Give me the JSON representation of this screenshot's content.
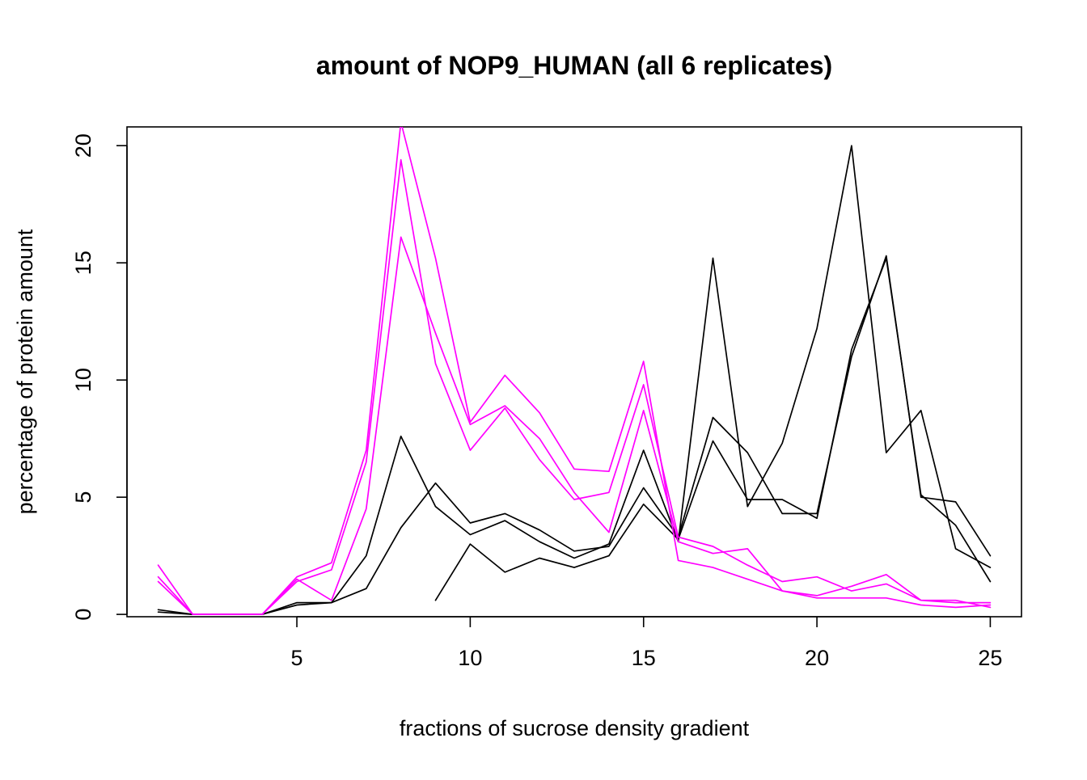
{
  "chart_data": {
    "type": "line",
    "title": "amount of NOP9_HUMAN (all 6 replicates)",
    "xlabel": "fractions of sucrose density gradient",
    "ylabel": "percentage of protein amount",
    "xlim": [
      0.1,
      25.9
    ],
    "ylim": [
      -0.1,
      20.8
    ],
    "x_ticks": [
      5,
      10,
      15,
      20,
      25
    ],
    "y_ticks": [
      0,
      5,
      10,
      15,
      20
    ],
    "grid": false,
    "legend": "none",
    "colors": {
      "black": "#000000",
      "magenta": "#ff00ff"
    },
    "x": [
      1,
      2,
      3,
      4,
      5,
      6,
      7,
      8,
      9,
      10,
      11,
      12,
      13,
      14,
      15,
      16,
      17,
      18,
      19,
      20,
      21,
      22,
      23,
      24,
      25
    ],
    "series": [
      {
        "color": "#000000",
        "values": [
          0.2,
          0.0,
          0.0,
          0.0,
          0.4,
          0.5,
          2.5,
          7.6,
          4.6,
          3.4,
          4.0,
          3.1,
          2.4,
          3.0,
          7.0,
          3.1,
          15.2,
          4.6,
          7.3,
          12.2,
          20.0,
          6.9,
          8.7,
          2.8,
          2.0
        ]
      },
      {
        "color": "#000000",
        "values": [
          0.1,
          0.0,
          0.0,
          0.0,
          0.5,
          0.5,
          1.1,
          3.7,
          5.6,
          3.9,
          4.3,
          3.6,
          2.7,
          2.9,
          5.4,
          3.3,
          8.4,
          6.9,
          4.3,
          4.3,
          11.0,
          15.3,
          5.0,
          4.8,
          2.5
        ]
      },
      {
        "color": "#000000",
        "values": [
          null,
          null,
          null,
          null,
          null,
          null,
          null,
          null,
          0.6,
          3.0,
          1.8,
          2.4,
          2.0,
          2.5,
          4.7,
          3.2,
          7.4,
          4.9,
          4.9,
          4.1,
          11.3,
          15.2,
          5.1,
          3.8,
          1.4
        ]
      },
      {
        "color": "#ff00ff",
        "values": [
          2.1,
          0.0,
          0.0,
          0.0,
          1.6,
          2.2,
          7.0,
          21.0,
          15.2,
          8.2,
          10.2,
          8.6,
          6.2,
          6.1,
          10.8,
          2.3,
          2.0,
          1.5,
          1.0,
          0.8,
          1.2,
          1.7,
          0.6,
          0.6,
          0.3
        ]
      },
      {
        "color": "#ff00ff",
        "values": [
          1.6,
          0.0,
          0.0,
          0.0,
          1.4,
          1.9,
          6.5,
          19.4,
          10.7,
          7.0,
          8.8,
          6.6,
          4.9,
          5.2,
          9.8,
          3.3,
          2.9,
          2.1,
          1.4,
          1.6,
          1.0,
          1.3,
          0.6,
          0.5,
          0.5
        ]
      },
      {
        "color": "#ff00ff",
        "values": [
          1.4,
          0.0,
          0.0,
          0.0,
          1.5,
          0.6,
          4.5,
          16.1,
          12.0,
          8.1,
          8.9,
          7.5,
          5.2,
          3.5,
          8.7,
          3.1,
          2.6,
          2.8,
          1.0,
          0.7,
          0.7,
          0.7,
          0.4,
          0.3,
          0.4
        ]
      }
    ]
  }
}
